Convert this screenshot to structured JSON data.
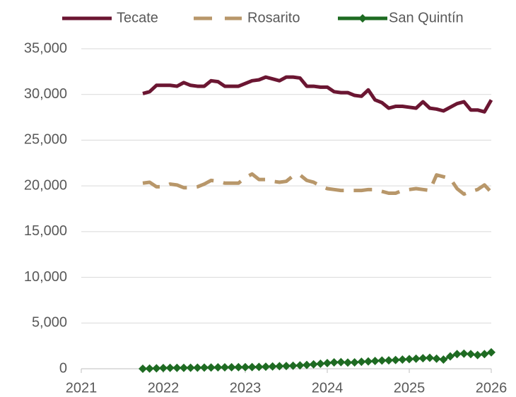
{
  "chart_data": {
    "type": "line",
    "x": [
      2021.75,
      2021.833,
      2021.917,
      2022,
      2022.083,
      2022.167,
      2022.25,
      2022.333,
      2022.417,
      2022.5,
      2022.583,
      2022.667,
      2022.75,
      2022.833,
      2022.917,
      2023,
      2023.083,
      2023.167,
      2023.25,
      2023.333,
      2023.417,
      2023.5,
      2023.583,
      2023.667,
      2023.75,
      2023.833,
      2023.917,
      2024,
      2024.083,
      2024.167,
      2024.25,
      2024.333,
      2024.417,
      2024.5,
      2024.583,
      2024.667,
      2024.75,
      2024.833,
      2024.917,
      2025,
      2025.083,
      2025.167,
      2025.25,
      2025.333,
      2025.417,
      2025.5,
      2025.583,
      2025.667,
      2025.75,
      2025.833,
      2025.917,
      2026
    ],
    "series": [
      {
        "name": "Tecate",
        "color": "#6b1632",
        "style": "solid",
        "values": [
          30100,
          30300,
          31000,
          31000,
          31000,
          30900,
          31300,
          31000,
          30900,
          30900,
          31500,
          31400,
          30900,
          30900,
          30900,
          31200,
          31500,
          31600,
          31900,
          31700,
          31500,
          31900,
          31900,
          31800,
          30900,
          30900,
          30800,
          30800,
          30300,
          30200,
          30200,
          29900,
          29800,
          30500,
          29400,
          29100,
          28500,
          28700,
          28700,
          28600,
          28500,
          29200,
          28500,
          28400,
          28200,
          28600,
          29000,
          29200,
          28300,
          28300,
          28100,
          29400
        ]
      },
      {
        "name": "Rosarito",
        "color": "#b8976a",
        "style": "dashed",
        "values": [
          20300,
          20400,
          19900,
          19900,
          20200,
          20100,
          19800,
          19800,
          19900,
          20200,
          20600,
          20500,
          20300,
          20300,
          20300,
          20900,
          21300,
          20700,
          20700,
          20500,
          20400,
          20500,
          21100,
          21200,
          20600,
          20400,
          20000,
          19700,
          19600,
          19500,
          19500,
          19500,
          19500,
          19600,
          19600,
          19400,
          19200,
          19200,
          19500,
          19600,
          19700,
          19600,
          19500,
          21200,
          21000,
          20800,
          19700,
          19100,
          19400,
          19600,
          20100,
          19300
        ]
      },
      {
        "name": "San Quintín",
        "color": "#1e6b22",
        "style": "diamond",
        "values": [
          0,
          20,
          50,
          80,
          100,
          100,
          100,
          110,
          120,
          130,
          140,
          150,
          150,
          160,
          170,
          170,
          180,
          200,
          220,
          250,
          280,
          300,
          330,
          370,
          420,
          480,
          550,
          620,
          700,
          720,
          680,
          700,
          760,
          800,
          850,
          900,
          920,
          960,
          1000,
          1050,
          1100,
          1150,
          1200,
          1100,
          1000,
          1350,
          1600,
          1650,
          1600,
          1500,
          1600,
          1800
        ]
      }
    ],
    "xlim": [
      2021,
      2026
    ],
    "xticks": [
      2021,
      2022,
      2023,
      2024,
      2025,
      2026
    ],
    "ylim": [
      0,
      35000
    ],
    "yticks": [
      0,
      {
        "value": 5000,
        "label": "5,000"
      },
      {
        "value": 10000,
        "label": "10,000"
      },
      {
        "value": 15000,
        "label": "15,000"
      },
      {
        "value": 20000,
        "label": "20,000"
      },
      {
        "value": 25000,
        "label": "25,000"
      },
      {
        "value": 30000,
        "label": "30,000"
      },
      {
        "value": 35000,
        "label": "35,000"
      }
    ],
    "grid": true,
    "legend": "top"
  }
}
